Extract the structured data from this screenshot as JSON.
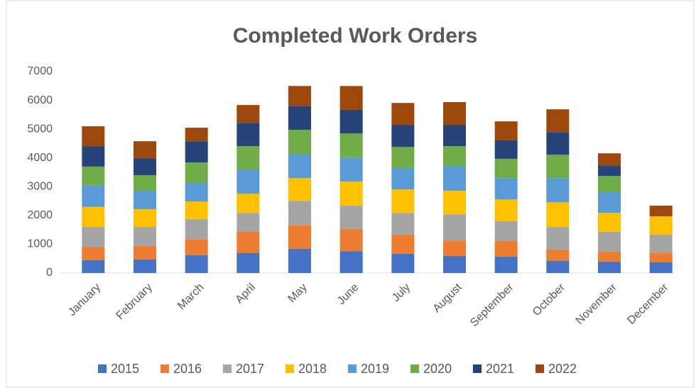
{
  "chart_data": {
    "type": "bar",
    "stacked": true,
    "title": "Completed Work Orders",
    "categories": [
      "January",
      "February",
      "March",
      "April",
      "May",
      "June",
      "July",
      "August",
      "September",
      "October",
      "November",
      "December"
    ],
    "series": [
      {
        "name": "2015",
        "color": "#4472c4",
        "values": [
          450,
          470,
          620,
          690,
          840,
          760,
          670,
          590,
          570,
          420,
          390,
          370
        ]
      },
      {
        "name": "2016",
        "color": "#ed7d31",
        "values": [
          450,
          470,
          560,
          740,
          830,
          770,
          660,
          540,
          540,
          390,
          350,
          340
        ]
      },
      {
        "name": "2017",
        "color": "#a5a5a5",
        "values": [
          700,
          660,
          690,
          660,
          840,
          810,
          760,
          910,
          690,
          790,
          690,
          620
        ]
      },
      {
        "name": "2018",
        "color": "#ffc000",
        "values": [
          700,
          620,
          620,
          670,
          790,
          840,
          820,
          820,
          760,
          860,
          660,
          640
        ]
      },
      {
        "name": "2019",
        "color": "#5b9bd5",
        "values": [
          750,
          640,
          640,
          840,
          840,
          830,
          740,
          860,
          740,
          840,
          720,
          0
        ]
      },
      {
        "name": "2020",
        "color": "#70ad47",
        "values": [
          650,
          540,
          710,
          810,
          840,
          840,
          730,
          690,
          670,
          810,
          560,
          0
        ]
      },
      {
        "name": "2021",
        "color": "#264478",
        "values": [
          700,
          590,
          740,
          810,
          830,
          820,
          770,
          740,
          640,
          790,
          370,
          0
        ]
      },
      {
        "name": "2022",
        "color": "#9e480e",
        "values": [
          700,
          590,
          470,
          620,
          690,
          830,
          760,
          790,
          660,
          790,
          420,
          370
        ]
      }
    ],
    "ylim": [
      0,
      7000
    ],
    "yticks": [
      0,
      1000,
      2000,
      3000,
      4000,
      5000,
      6000,
      7000
    ],
    "grid": false,
    "legend": "bottom"
  }
}
